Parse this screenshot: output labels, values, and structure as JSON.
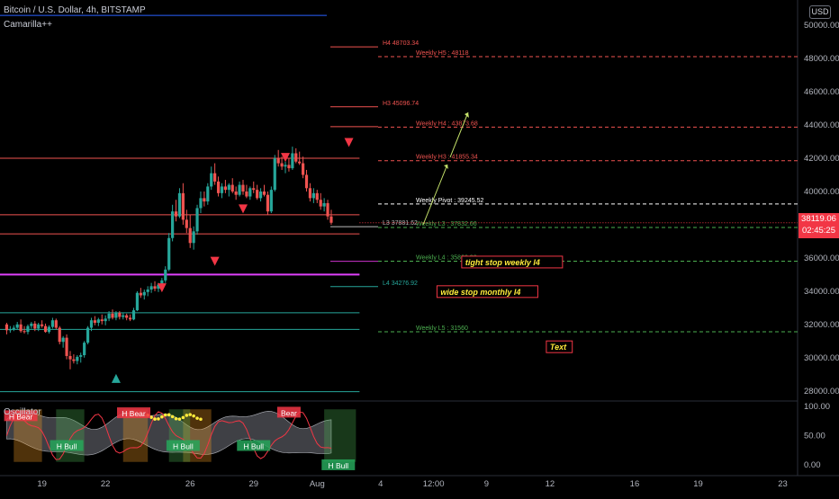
{
  "header": {
    "title": "Bitcoin / U.S. Dollar, 4h, BITSTAMP",
    "indicator": "Camarilla++",
    "currency_button": "USD"
  },
  "price_tag": {
    "price": "38119.06",
    "countdown": "02:45:25"
  },
  "oscillator": {
    "title": "Oscillator",
    "ticks": [
      "100.00",
      "50.00",
      "0.00"
    ],
    "tick_values": [
      100,
      50,
      0
    ],
    "labels": [
      {
        "text": "H Bear",
        "type": "bear",
        "ti": 4,
        "val": 81
      },
      {
        "text": "H Bear",
        "type": "bear",
        "ti": 36,
        "val": 86
      },
      {
        "text": "Bear",
        "type": "bear",
        "ti": 80,
        "val": 87
      },
      {
        "text": "H Bull",
        "type": "bull",
        "ti": 17,
        "val": 30
      },
      {
        "text": "H Bull",
        "type": "bull",
        "ti": 50,
        "val": 30
      },
      {
        "text": "H Bull",
        "type": "bull",
        "ti": 70,
        "val": 30
      },
      {
        "text": "H Bull",
        "type": "bull",
        "ti": 94,
        "val": -3
      }
    ]
  },
  "chart_data": {
    "type": "candlestick",
    "symbol": "Bitcoin / U.S. Dollar",
    "interval": "4h",
    "exchange": "BITSTAMP",
    "y_axis": {
      "ticks": [
        50000,
        48000,
        46000,
        44000,
        42000,
        40000,
        38000,
        36000,
        34000,
        32000,
        30000,
        28000
      ],
      "tick_labels": [
        "50000.00",
        "48000.00",
        "46000.00",
        "44000.00",
        "42000.00",
        "40000.00",
        "38000.00",
        "36000.00",
        "34000.00",
        "32000.00",
        "30000.00",
        "28000.00"
      ],
      "range": [
        27500,
        51200
      ]
    },
    "x_axis": {
      "labels": [
        {
          "text": "19",
          "ti": 10
        },
        {
          "text": "22",
          "ti": 28
        },
        {
          "text": "26",
          "ti": 52
        },
        {
          "text": "29",
          "ti": 70
        },
        {
          "text": "Aug",
          "ti": 88
        },
        {
          "text": "4",
          "ti": 106
        },
        {
          "text": "12:00",
          "ti": 121
        },
        {
          "text": "9",
          "ti": 136
        },
        {
          "text": "12",
          "ti": 154
        },
        {
          "text": "16",
          "ti": 178
        },
        {
          "text": "19",
          "ti": 196
        },
        {
          "text": "23",
          "ti": 220
        }
      ],
      "range": [
        -1.9,
        224.2
      ]
    },
    "last_candle_index": 99,
    "candles": [
      [
        32000,
        32100,
        31400,
        31650
      ],
      [
        31650,
        31900,
        31500,
        31700
      ],
      [
        31700,
        31950,
        31600,
        31800
      ],
      [
        31800,
        32150,
        31700,
        32000
      ],
      [
        32000,
        32300,
        31500,
        31600
      ],
      [
        31600,
        31900,
        31450,
        31550
      ],
      [
        31550,
        32000,
        31400,
        31900
      ],
      [
        31900,
        32150,
        31750,
        32050
      ],
      [
        32050,
        32200,
        31600,
        31750
      ],
      [
        31750,
        32100,
        31600,
        32000
      ],
      [
        32000,
        32250,
        31800,
        31900
      ],
      [
        31900,
        32050,
        31500,
        31550
      ],
      [
        31550,
        31950,
        31450,
        31850
      ],
      [
        31850,
        32400,
        31750,
        32250
      ],
      [
        32250,
        32350,
        31700,
        31800
      ],
      [
        31800,
        31900,
        30800,
        30950
      ],
      [
        30950,
        31300,
        30600,
        31200
      ],
      [
        31200,
        31400,
        29900,
        30100
      ],
      [
        30100,
        30400,
        29300,
        29900
      ],
      [
        29900,
        30200,
        29650,
        29800
      ],
      [
        29800,
        30150,
        29600,
        30050
      ],
      [
        30050,
        30300,
        29700,
        30150
      ],
      [
        30150,
        31000,
        30000,
        30900
      ],
      [
        30900,
        31900,
        30800,
        31800
      ],
      [
        31800,
        32400,
        31600,
        32250
      ],
      [
        32250,
        32500,
        31950,
        32100
      ],
      [
        32100,
        32400,
        31900,
        32300
      ],
      [
        32300,
        32600,
        32000,
        32200
      ],
      [
        32200,
        32550,
        31950,
        32350
      ],
      [
        32350,
        32800,
        32200,
        32650
      ],
      [
        32650,
        32900,
        32300,
        32400
      ],
      [
        32400,
        32800,
        32250,
        32700
      ],
      [
        32700,
        32800,
        32300,
        32450
      ],
      [
        32450,
        32700,
        32300,
        32550
      ],
      [
        32550,
        32650,
        32250,
        32400
      ],
      [
        32400,
        32600,
        32200,
        32300
      ],
      [
        32300,
        33000,
        32250,
        32850
      ],
      [
        32850,
        34000,
        32800,
        33900
      ],
      [
        33900,
        34200,
        33600,
        33750
      ],
      [
        33750,
        34100,
        33500,
        33950
      ],
      [
        33950,
        34300,
        33700,
        34100
      ],
      [
        34100,
        34500,
        33900,
        34300
      ],
      [
        34300,
        34600,
        34000,
        34150
      ],
      [
        34150,
        34500,
        33950,
        34400
      ],
      [
        34400,
        34800,
        34200,
        34650
      ],
      [
        34650,
        35500,
        34500,
        35300
      ],
      [
        35300,
        37500,
        35200,
        37200
      ],
      [
        37200,
        39200,
        37000,
        38800
      ],
      [
        38800,
        39500,
        38200,
        38500
      ],
      [
        38500,
        40200,
        38400,
        39900
      ],
      [
        39900,
        40500,
        38000,
        38300
      ],
      [
        38300,
        38900,
        37500,
        37800
      ],
      [
        37800,
        38600,
        36600,
        36900
      ],
      [
        36900,
        37900,
        36500,
        37600
      ],
      [
        37600,
        39200,
        37400,
        39000
      ],
      [
        39000,
        40000,
        38700,
        39600
      ],
      [
        39600,
        40000,
        39100,
        39400
      ],
      [
        39400,
        40500,
        39200,
        40300
      ],
      [
        40300,
        41500,
        40100,
        41100
      ],
      [
        41100,
        41700,
        40400,
        40600
      ],
      [
        40600,
        40900,
        39700,
        39900
      ],
      [
        39900,
        40500,
        39600,
        40300
      ],
      [
        40300,
        40700,
        39900,
        40100
      ],
      [
        40100,
        40500,
        39700,
        40400
      ],
      [
        40400,
        40800,
        39900,
        40000
      ],
      [
        40000,
        40300,
        39500,
        39800
      ],
      [
        39800,
        40600,
        39700,
        40400
      ],
      [
        40400,
        40700,
        39800,
        40000
      ],
      [
        40000,
        40400,
        39600,
        39700
      ],
      [
        39700,
        40300,
        39500,
        40200
      ],
      [
        40200,
        40600,
        39900,
        40100
      ],
      [
        40100,
        40400,
        39500,
        39600
      ],
      [
        39600,
        40200,
        39400,
        40000
      ],
      [
        40000,
        40400,
        39700,
        39800
      ],
      [
        39800,
        40000,
        38600,
        38800
      ],
      [
        38800,
        40300,
        38700,
        40100
      ],
      [
        40100,
        42200,
        40000,
        42000
      ],
      [
        42000,
        42500,
        41500,
        41700
      ],
      [
        41700,
        42100,
        41300,
        41500
      ],
      [
        41500,
        41800,
        41100,
        41600
      ],
      [
        41600,
        42000,
        41200,
        41400
      ],
      [
        41400,
        42700,
        41300,
        42300
      ],
      [
        42300,
        42600,
        41700,
        41800
      ],
      [
        41800,
        42400,
        41600,
        41700
      ],
      [
        41700,
        42100,
        40800,
        41000
      ],
      [
        41000,
        41300,
        40000,
        40200
      ],
      [
        40200,
        40500,
        39400,
        39600
      ],
      [
        39600,
        40200,
        39300,
        39900
      ],
      [
        39900,
        40100,
        39300,
        39500
      ],
      [
        39500,
        39900,
        38900,
        39100
      ],
      [
        39100,
        39600,
        38800,
        39300
      ],
      [
        39300,
        39500,
        38300,
        38500
      ],
      [
        38500,
        38900,
        38000,
        38119
      ]
    ],
    "levels": [
      {
        "label": "H4 48703.34",
        "value": 48703.34,
        "color": "#ef5350",
        "kind": "monthly"
      },
      {
        "label": "H3 45096.74",
        "value": 45096.74,
        "color": "#ef5350",
        "kind": "monthly"
      },
      {
        "label": "",
        "value": 43900,
        "color": "#ef5350",
        "kind": "monthly"
      },
      {
        "label": "L3 37881.62",
        "value": 37881.62,
        "color": "#bbbbbb",
        "kind": "monthly"
      },
      {
        "label": "",
        "value": 35800,
        "color": "#cc33cc",
        "kind": "monthly"
      },
      {
        "label": "L4 34276.92",
        "value": 34276.92,
        "color": "#26a69a",
        "kind": "monthly"
      },
      {
        "label": "Weekly H5 : 48118",
        "value": 48118,
        "color": "#ef5350",
        "kind": "weekly"
      },
      {
        "label": "Weekly H4 : 43873.68",
        "value": 43873.68,
        "color": "#ef5350",
        "kind": "weekly"
      },
      {
        "label": "Weekly H3 : 41855.34",
        "value": 41855.34,
        "color": "#ef5350",
        "kind": "weekly"
      },
      {
        "label": "Weekly Pivot : 39245.52",
        "value": 39245.52,
        "color": "#ffffff",
        "kind": "weekly"
      },
      {
        "label": "Weekly L3 : 37832.66",
        "value": 37832.66,
        "color": "#4caf50",
        "kind": "weekly"
      },
      {
        "label": "Weekly L4 : 35806.32",
        "value": 35806.32,
        "color": "#4caf50",
        "kind": "weekly"
      },
      {
        "label": "Weekly L5 : 31560",
        "value": 31560,
        "color": "#4caf50",
        "kind": "weekly"
      }
    ],
    "history_lines": [
      {
        "value": 50600,
        "color": "#2962ff"
      },
      {
        "value": 42000,
        "color": "#ef5350"
      },
      {
        "value": 38600,
        "color": "#ef5350"
      },
      {
        "value": 37450,
        "color": "#ef5350"
      },
      {
        "value": 35000,
        "color": "#e040fb"
      },
      {
        "value": 32700,
        "color": "#26a69a"
      },
      {
        "value": 31700,
        "color": "#26a69a"
      },
      {
        "value": 27950,
        "color": "#26a69a"
      }
    ],
    "annotations": [
      {
        "text": "tight stop weekly l4",
        "ti": 130,
        "value": 35620
      },
      {
        "text": "wide stop monthly l4",
        "ti": 123,
        "value": 33840
      },
      {
        "text": "Text",
        "ti": 154,
        "value": 30520
      }
    ],
    "markers": [
      {
        "type": "down",
        "ti": 44,
        "value": 34200
      },
      {
        "type": "down",
        "ti": 59,
        "value": 35800
      },
      {
        "type": "down",
        "ti": 67,
        "value": 38950
      },
      {
        "type": "down",
        "ti": 79,
        "value": 42050
      },
      {
        "type": "down",
        "ti": 97,
        "value": 42950
      },
      {
        "type": "up",
        "ti": 31,
        "value": 28750
      }
    ]
  }
}
